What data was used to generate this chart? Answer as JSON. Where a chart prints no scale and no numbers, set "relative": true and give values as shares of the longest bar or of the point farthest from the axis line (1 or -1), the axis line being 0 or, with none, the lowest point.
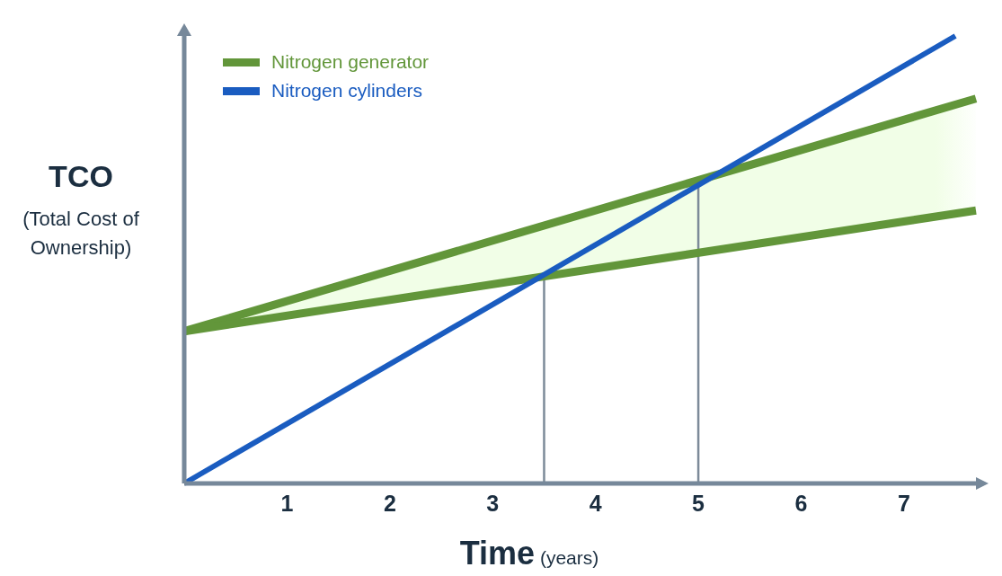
{
  "chart_data": {
    "type": "line",
    "xlabel": "Time (years)",
    "ylabel": "TCO (Total Cost of Ownership)",
    "relative": true,
    "xlim": [
      0,
      7.7
    ],
    "xticks": [
      1,
      2,
      3,
      4,
      5,
      6,
      7
    ],
    "legend": "top left",
    "series": [
      {
        "color": "#7d8b99",
        "x": [
          3.5,
          3.5
        ],
        "values": [
          0,
          0.47
        ]
      },
      {
        "color": "#7d8b99",
        "x": [
          5,
          5
        ],
        "values": [
          0,
          0.68
        ]
      },
      {
        "name": "Nitrogen generator",
        "color": "#62963a",
        "x": [
          0,
          7.7
        ],
        "values": [
          0.34,
          0.86
        ],
        "lower": [
          0.34,
          0.61
        ],
        "upper": [
          0.34,
          0.86
        ]
      },
      {
        "color": "#62963a",
        "x": [
          0,
          7.7
        ],
        "values": [
          0.34,
          0.61
        ]
      },
      {
        "name": "Nitrogen cylinders",
        "color": "#1a5cc0",
        "x": [
          0,
          7.5
        ],
        "values": [
          0,
          1
        ]
      }
    ]
  }
}
